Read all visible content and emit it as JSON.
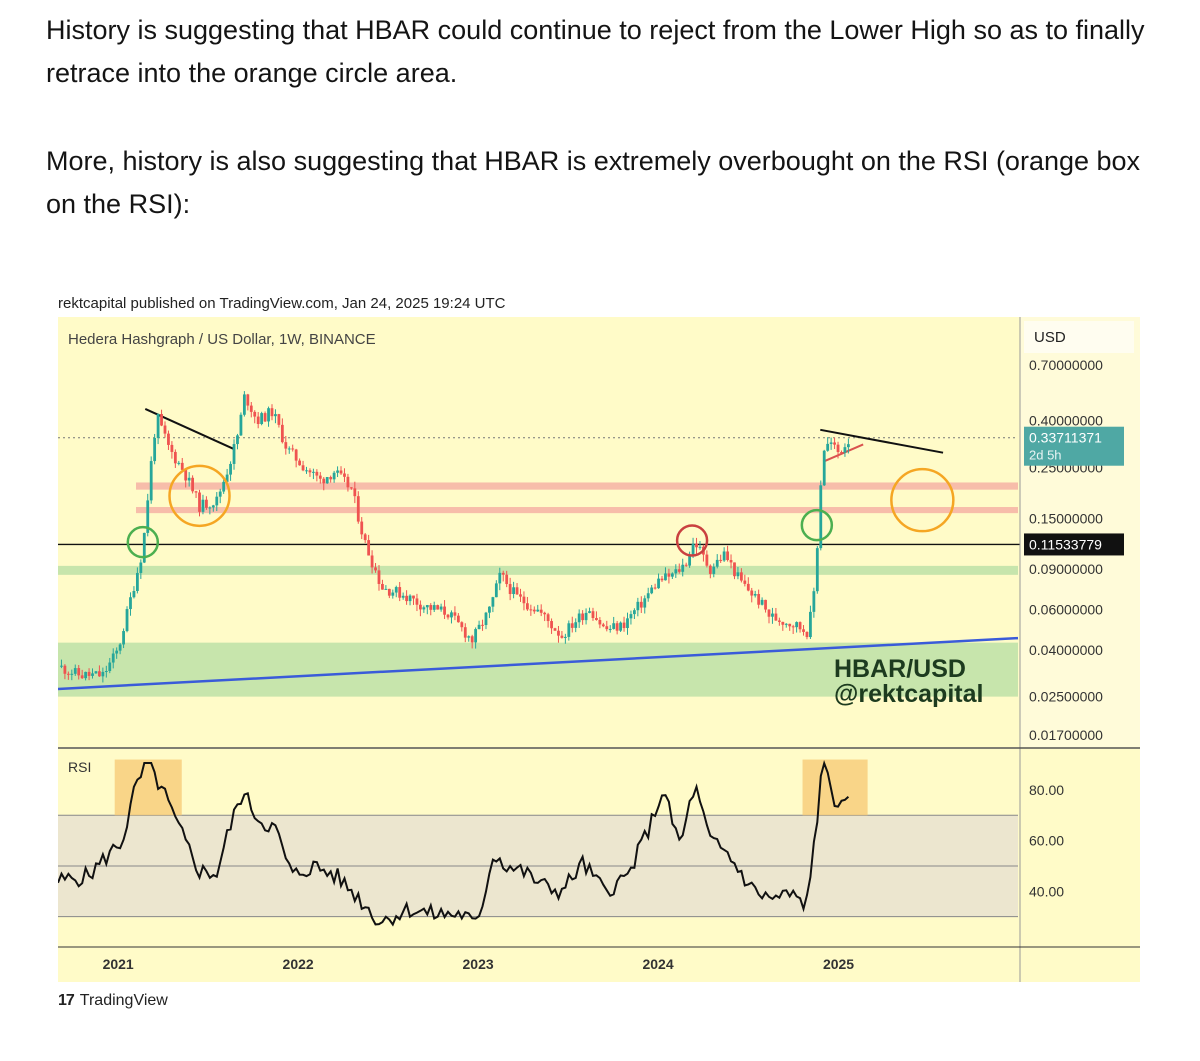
{
  "post": {
    "paragraph1": "History is suggesting that HBAR could continue to reject from the Lower High so as to finally retrace into the orange circle area.",
    "paragraph2": "More, history is also suggesting that HBAR is extremely overbought on the RSI (orange box on the RSI):"
  },
  "chart_header": {
    "credit": "rektcapital published on TradingView.com, Jan 24, 2025 19:24 UTC",
    "symbol_title": "Hedera Hashgraph / US Dollar, 1W, BINANCE",
    "currency": "USD",
    "watermark_line1": "HBAR/USD",
    "watermark_line2": "@rektcapital",
    "rsi_label": "RSI"
  },
  "branding": {
    "logo": "17",
    "name": "TradingView"
  },
  "colors": {
    "panel_bg": "#fffbc8",
    "candle_up": "#26a69a",
    "candle_down": "#ef5350",
    "support_green": "#b9e0a5",
    "resistance_red": "#f4a8a0",
    "orange_circle": "#f5a623",
    "green_circle": "#4caf50",
    "red_circle": "#c94040",
    "trendline_blue": "#3a5bd9",
    "price_tag": "#4fa8a4",
    "rsi_box": "#f7c873"
  },
  "chart_data": {
    "type": "candlestick",
    "title": "Hedera Hashgraph / US Dollar, 1W, BINANCE",
    "scale": "log",
    "price_axis": {
      "ticks": [
        "0.70000000",
        "0.40000000",
        "0.25000000",
        "0.15000000",
        "0.09000000",
        "0.06000000",
        "0.04000000",
        "0.02500000",
        "0.01700000"
      ],
      "tick_values": [
        0.7,
        0.4,
        0.25,
        0.15,
        0.09,
        0.06,
        0.04,
        0.025,
        0.017
      ],
      "last_price": "0.33711371",
      "last_price_value": 0.33711371,
      "countdown": "2d 5h",
      "marked_price": "0.11533779",
      "marked_price_value": 0.11533779
    },
    "time_axis": {
      "labels": [
        "2021",
        "2022",
        "2023",
        "2024",
        "2025"
      ],
      "start": "2020-09-01",
      "end": "2025-12-31"
    },
    "price_path": [
      [
        "2020-09-01",
        0.034
      ],
      [
        "2020-10-15",
        0.031
      ],
      [
        "2020-12-01",
        0.031
      ],
      [
        "2021-01-01",
        0.04
      ],
      [
        "2021-02-01",
        0.075
      ],
      [
        "2021-02-20",
        0.11
      ],
      [
        "2021-03-08",
        0.25
      ],
      [
        "2021-03-20",
        0.42
      ],
      [
        "2021-04-15",
        0.3
      ],
      [
        "2021-05-15",
        0.24
      ],
      [
        "2021-06-15",
        0.17
      ],
      [
        "2021-07-20",
        0.18
      ],
      [
        "2021-08-15",
        0.26
      ],
      [
        "2021-09-01",
        0.35
      ],
      [
        "2021-09-15",
        0.52
      ],
      [
        "2021-10-10",
        0.4
      ],
      [
        "2021-11-10",
        0.44
      ],
      [
        "2021-12-10",
        0.3
      ],
      [
        "2022-01-15",
        0.25
      ],
      [
        "2022-02-15",
        0.22
      ],
      [
        "2022-03-15",
        0.24
      ],
      [
        "2022-04-20",
        0.2
      ],
      [
        "2022-05-15",
        0.12
      ],
      [
        "2022-06-20",
        0.075
      ],
      [
        "2022-08-01",
        0.07
      ],
      [
        "2022-09-15",
        0.062
      ],
      [
        "2022-11-01",
        0.058
      ],
      [
        "2022-12-20",
        0.044
      ],
      [
        "2023-01-25",
        0.06
      ],
      [
        "2023-02-15",
        0.085
      ],
      [
        "2023-03-20",
        0.068
      ],
      [
        "2023-05-01",
        0.06
      ],
      [
        "2023-06-20",
        0.046
      ],
      [
        "2023-07-15",
        0.053
      ],
      [
        "2023-08-15",
        0.061
      ],
      [
        "2023-09-15",
        0.049
      ],
      [
        "2023-10-20",
        0.051
      ],
      [
        "2023-12-01",
        0.065
      ],
      [
        "2024-01-01",
        0.08
      ],
      [
        "2024-02-01",
        0.085
      ],
      [
        "2024-02-25",
        0.095
      ],
      [
        "2024-03-15",
        0.12
      ],
      [
        "2024-04-15",
        0.09
      ],
      [
        "2024-05-15",
        0.105
      ],
      [
        "2024-06-15",
        0.08
      ],
      [
        "2024-07-25",
        0.065
      ],
      [
        "2024-08-15",
        0.056
      ],
      [
        "2024-10-01",
        0.052
      ],
      [
        "2024-11-01",
        0.048
      ],
      [
        "2024-11-15",
        0.08
      ],
      [
        "2024-11-25",
        0.2
      ],
      [
        "2024-12-01",
        0.3
      ],
      [
        "2024-12-15",
        0.32
      ],
      [
        "2025-01-01",
        0.29
      ],
      [
        "2025-01-24",
        0.337
      ]
    ],
    "rsi_series": {
      "name": "RSI",
      "ticks": [
        "80.00",
        "60.00",
        "40.00"
      ],
      "tick_values": [
        80,
        60,
        40
      ],
      "overbought": 70,
      "mid": 50,
      "oversold": 30,
      "values": [
        [
          "2020-09-01",
          44
        ],
        [
          "2020-11-01",
          46
        ],
        [
          "2020-12-15",
          55
        ],
        [
          "2021-01-10",
          60
        ],
        [
          "2021-02-01",
          78
        ],
        [
          "2021-02-15",
          85
        ],
        [
          "2021-03-01",
          90
        ],
        [
          "2021-04-01",
          80
        ],
        [
          "2021-05-01",
          66
        ],
        [
          "2021-06-15",
          48
        ],
        [
          "2021-07-20",
          47
        ],
        [
          "2021-08-15",
          65
        ],
        [
          "2021-09-10",
          79
        ],
        [
          "2021-10-15",
          68
        ],
        [
          "2021-11-15",
          65
        ],
        [
          "2021-12-20",
          46
        ],
        [
          "2022-02-01",
          50
        ],
        [
          "2022-03-20",
          46
        ],
        [
          "2022-05-01",
          38
        ],
        [
          "2022-06-15",
          28
        ],
        [
          "2022-08-15",
          33
        ],
        [
          "2022-10-01",
          31
        ],
        [
          "2022-12-01",
          31
        ],
        [
          "2022-12-30",
          26
        ],
        [
          "2023-02-01",
          55
        ],
        [
          "2023-03-01",
          50
        ],
        [
          "2023-04-01",
          48
        ],
        [
          "2023-05-15",
          42
        ],
        [
          "2023-06-20",
          40
        ],
        [
          "2023-08-01",
          51
        ],
        [
          "2023-09-15",
          40
        ],
        [
          "2023-11-01",
          46
        ],
        [
          "2023-12-20",
          68
        ],
        [
          "2024-01-10",
          80
        ],
        [
          "2024-02-15",
          58
        ],
        [
          "2024-03-15",
          82
        ],
        [
          "2024-04-15",
          60
        ],
        [
          "2024-05-20",
          55
        ],
        [
          "2024-07-10",
          41
        ],
        [
          "2024-08-15",
          37
        ],
        [
          "2024-10-01",
          39
        ],
        [
          "2024-10-25",
          32
        ],
        [
          "2024-11-15",
          62
        ],
        [
          "2024-11-25",
          82
        ],
        [
          "2024-12-05",
          90
        ],
        [
          "2024-12-25",
          76
        ],
        [
          "2025-01-10",
          72
        ],
        [
          "2025-01-24",
          75
        ]
      ]
    }
  }
}
